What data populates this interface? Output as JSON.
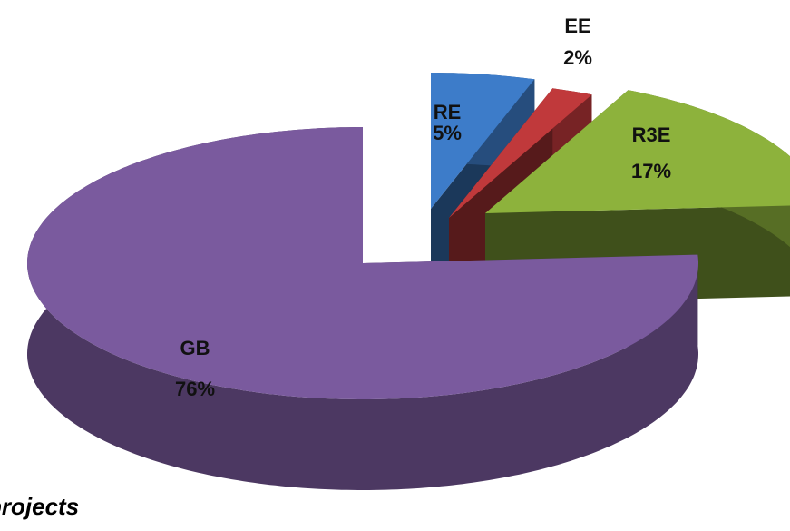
{
  "chart_data": {
    "type": "pie",
    "categories": [
      "RE",
      "EE",
      "R3E",
      "GB"
    ],
    "values": [
      5,
      2,
      17,
      76
    ],
    "value_labels": [
      "5%",
      "2%",
      "17%",
      "76%"
    ],
    "colors": [
      "#3d7cc9",
      "#c0393b",
      "#8db23c",
      "#7a5a9e"
    ],
    "annotation": "projects"
  }
}
